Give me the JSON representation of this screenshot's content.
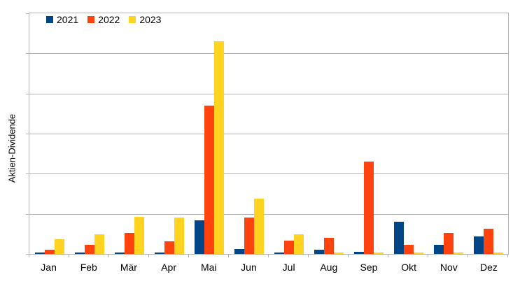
{
  "chart_data": {
    "type": "bar",
    "title": "",
    "xlabel": "",
    "ylabel": "Aktien-Dividende",
    "categories": [
      "Jan",
      "Feb",
      "Mär",
      "Apr",
      "Mai",
      "Jun",
      "Jul",
      "Aug",
      "Sep",
      "Okt",
      "Nov",
      "Dez"
    ],
    "series": [
      {
        "name": "2021",
        "color": "#004586",
        "values": [
          0.04,
          0.04,
          0.04,
          0.04,
          0.83,
          0.13,
          0.04,
          0.11,
          0.05,
          0.81,
          0.23,
          0.43
        ]
      },
      {
        "name": "2022",
        "color": "#ff420e",
        "values": [
          0.1,
          0.23,
          0.52,
          0.31,
          3.69,
          0.91,
          0.33,
          0.41,
          2.3,
          0.23,
          0.52,
          0.62
        ]
      },
      {
        "name": "2023",
        "color": "#ffd320",
        "values": [
          0.37,
          0.49,
          0.92,
          0.91,
          5.31,
          1.37,
          0.48,
          0.03,
          0.03,
          0.03,
          0.03,
          0.03
        ]
      }
    ],
    "value_units": "relative gridline units (value axis has no tick labels)",
    "ylim": [
      0,
      6
    ],
    "y_gridline_interval": 1,
    "grid": true,
    "legend_position": "top-left inside plot area"
  },
  "colors": {
    "series_2021": "#004586",
    "series_2022": "#ff420e",
    "series_2023": "#ffd320",
    "grid": "#b3b3b3",
    "plot_border": "#b3b3b3",
    "axis_ticks": "#b3b3b3",
    "text": "#000000",
    "background": "#ffffff"
  }
}
